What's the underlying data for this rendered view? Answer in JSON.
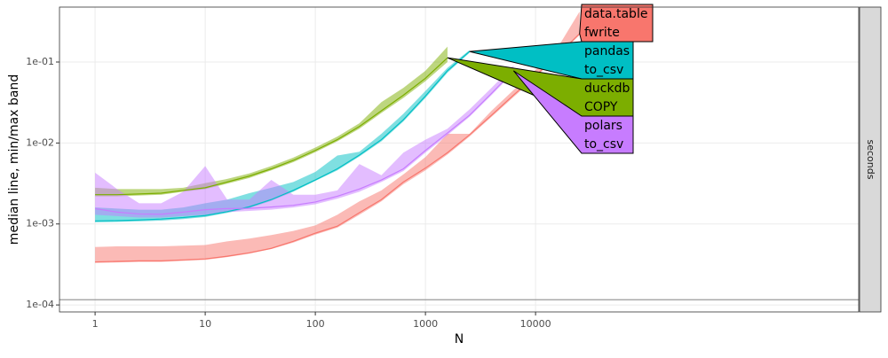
{
  "chart_data": {
    "type": "line-band",
    "xlabel": "N",
    "ylabel": "median line, min/max band",
    "strip": "seconds",
    "xlog": true,
    "ylog": true,
    "grid": true,
    "xlim": [
      0.475,
      8600000
    ],
    "ylim": [
      8.2e-05,
      0.477
    ],
    "xticks": [
      1,
      10,
      100,
      1000,
      10000
    ],
    "yticks": [
      {
        "value": 0.0001,
        "label": "1e-04"
      },
      {
        "value": 0.001,
        "label": "1e-03"
      },
      {
        "value": 0.01,
        "label": "1e-02"
      },
      {
        "value": 0.1,
        "label": "1e-01"
      }
    ],
    "hline": 0.000116,
    "x": [
      1,
      1.585,
      2.512,
      3.981,
      6.31,
      10,
      15.85,
      25.12,
      39.81,
      63.1,
      100,
      158.5,
      251.2,
      398.1,
      631,
      1000,
      1585,
      2512,
      3981,
      6310,
      10000,
      15849,
      25119
    ],
    "series": [
      {
        "name": [
          "data.table",
          "fwrite"
        ],
        "color": "#F8766D",
        "values": [
          0.00034,
          0.000345,
          0.00035,
          0.00035,
          0.00036,
          0.00037,
          0.0004,
          0.00044,
          0.0005,
          0.00061,
          0.00077,
          0.00094,
          0.00138,
          0.002,
          0.0033,
          0.0049,
          0.0076,
          0.0126,
          0.022,
          0.039,
          0.068,
          0.122,
          0.224
        ],
        "min": [
          0.00033,
          0.000335,
          0.00034,
          0.00034,
          0.00035,
          0.00036,
          0.00039,
          0.00043,
          0.00049,
          0.00059,
          0.00074,
          0.0009,
          0.0013,
          0.0019,
          0.0031,
          0.0046,
          0.0072,
          0.012,
          0.021,
          0.037,
          0.065,
          0.118,
          0.215
        ],
        "max": [
          0.00052,
          0.00053,
          0.00053,
          0.00053,
          0.00054,
          0.00055,
          0.00061,
          0.00066,
          0.00073,
          0.00082,
          0.00096,
          0.0013,
          0.0019,
          0.0026,
          0.0041,
          0.0067,
          0.013,
          0.013,
          0.025,
          0.045,
          0.08,
          0.15,
          0.42
        ]
      },
      {
        "name": [
          "pandas",
          "to_csv"
        ],
        "color": "#00BFC4",
        "values": [
          0.00109,
          0.0011,
          0.00112,
          0.00115,
          0.0012,
          0.00127,
          0.00142,
          0.00163,
          0.002,
          0.0026,
          0.0035,
          0.0048,
          0.0071,
          0.011,
          0.0194,
          0.038,
          0.078,
          0.135,
          null,
          null,
          null,
          null,
          null
        ],
        "min": [
          0.00105,
          0.00106,
          0.00108,
          0.0011,
          0.00115,
          0.00122,
          0.00137,
          0.00157,
          0.00193,
          0.0025,
          0.0034,
          0.0046,
          0.0068,
          0.0105,
          0.0185,
          0.036,
          0.074,
          0.13,
          null,
          null,
          null,
          null,
          null
        ],
        "max": [
          0.0016,
          0.00155,
          0.0015,
          0.0015,
          0.0016,
          0.0018,
          0.002,
          0.0024,
          0.0028,
          0.0033,
          0.0044,
          0.007,
          0.0078,
          0.013,
          0.023,
          0.044,
          0.085,
          0.14,
          null,
          null,
          null,
          null,
          null
        ]
      },
      {
        "name": [
          "duckdb",
          "COPY"
        ],
        "color": "#7CAE00",
        "values": [
          0.0023,
          0.0023,
          0.00235,
          0.0024,
          0.0026,
          0.0028,
          0.0033,
          0.0039,
          0.0048,
          0.0061,
          0.0081,
          0.011,
          0.016,
          0.025,
          0.039,
          0.063,
          0.113,
          null,
          null,
          null,
          null,
          null,
          null
        ],
        "min": [
          0.0022,
          0.0022,
          0.00225,
          0.0023,
          0.0025,
          0.0027,
          0.00315,
          0.0037,
          0.0046,
          0.0058,
          0.0077,
          0.0105,
          0.015,
          0.0235,
          0.036,
          0.058,
          0.1,
          null,
          null,
          null,
          null,
          null,
          null
        ],
        "max": [
          0.0028,
          0.0027,
          0.0027,
          0.0027,
          0.0028,
          0.0032,
          0.0036,
          0.0042,
          0.0052,
          0.0066,
          0.0088,
          0.012,
          0.0175,
          0.032,
          0.048,
          0.078,
          0.155,
          null,
          null,
          null,
          null,
          null,
          null
        ]
      },
      {
        "name": [
          "polars",
          "to_csv"
        ],
        "color": "#C77CFF",
        "values": [
          0.00155,
          0.0014,
          0.00133,
          0.00132,
          0.0014,
          0.0015,
          0.00155,
          0.00156,
          0.00162,
          0.0017,
          0.00187,
          0.0022,
          0.0027,
          0.0035,
          0.0048,
          0.0081,
          0.0133,
          0.022,
          0.041,
          0.078,
          null,
          null,
          null
        ],
        "min": [
          0.0013,
          0.00125,
          0.0012,
          0.0012,
          0.00125,
          0.0013,
          0.0014,
          0.00145,
          0.0015,
          0.0016,
          0.00175,
          0.00205,
          0.0025,
          0.0033,
          0.0045,
          0.0076,
          0.0125,
          0.021,
          0.039,
          0.074,
          null,
          null,
          null
        ],
        "max": [
          0.0043,
          0.0027,
          0.0018,
          0.0018,
          0.0025,
          0.0052,
          0.002,
          0.002,
          0.0035,
          0.0023,
          0.0023,
          0.0026,
          0.0055,
          0.004,
          0.0076,
          0.011,
          0.015,
          0.026,
          0.048,
          0.09,
          null,
          null,
          null
        ]
      }
    ]
  }
}
